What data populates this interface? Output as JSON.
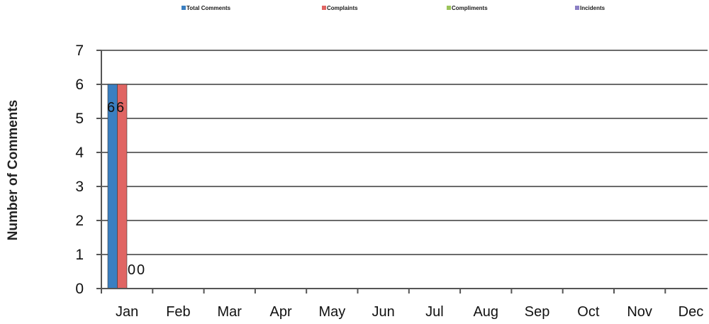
{
  "chart_data": {
    "type": "bar",
    "title": "",
    "xlabel": "",
    "ylabel": "Number of Comments",
    "ylim": [
      0,
      7
    ],
    "yticks": [
      0,
      1,
      2,
      3,
      4,
      5,
      6,
      7
    ],
    "grid": true,
    "legend_position": "top",
    "categories": [
      "Jan",
      "Feb",
      "Mar",
      "Apr",
      "May",
      "Jun",
      "Jul",
      "Aug",
      "Sep",
      "Oct",
      "Nov",
      "Dec"
    ],
    "series": [
      {
        "name": "Total Comments",
        "color": "#3a7fc1",
        "values": [
          6,
          null,
          null,
          null,
          null,
          null,
          null,
          null,
          null,
          null,
          null,
          null
        ]
      },
      {
        "name": "Complaints",
        "color": "#e06563",
        "values": [
          6,
          null,
          null,
          null,
          null,
          null,
          null,
          null,
          null,
          null,
          null,
          null
        ]
      },
      {
        "name": "Compliments",
        "color": "#9bc45a",
        "values": [
          0,
          null,
          null,
          null,
          null,
          null,
          null,
          null,
          null,
          null,
          null,
          null
        ]
      },
      {
        "name": "Incidents",
        "color": "#8b7fc4",
        "values": [
          0,
          null,
          null,
          null,
          null,
          null,
          null,
          null,
          null,
          null,
          null,
          null
        ]
      }
    ],
    "data_labels": [
      "6",
      "6",
      "0",
      "0"
    ]
  }
}
